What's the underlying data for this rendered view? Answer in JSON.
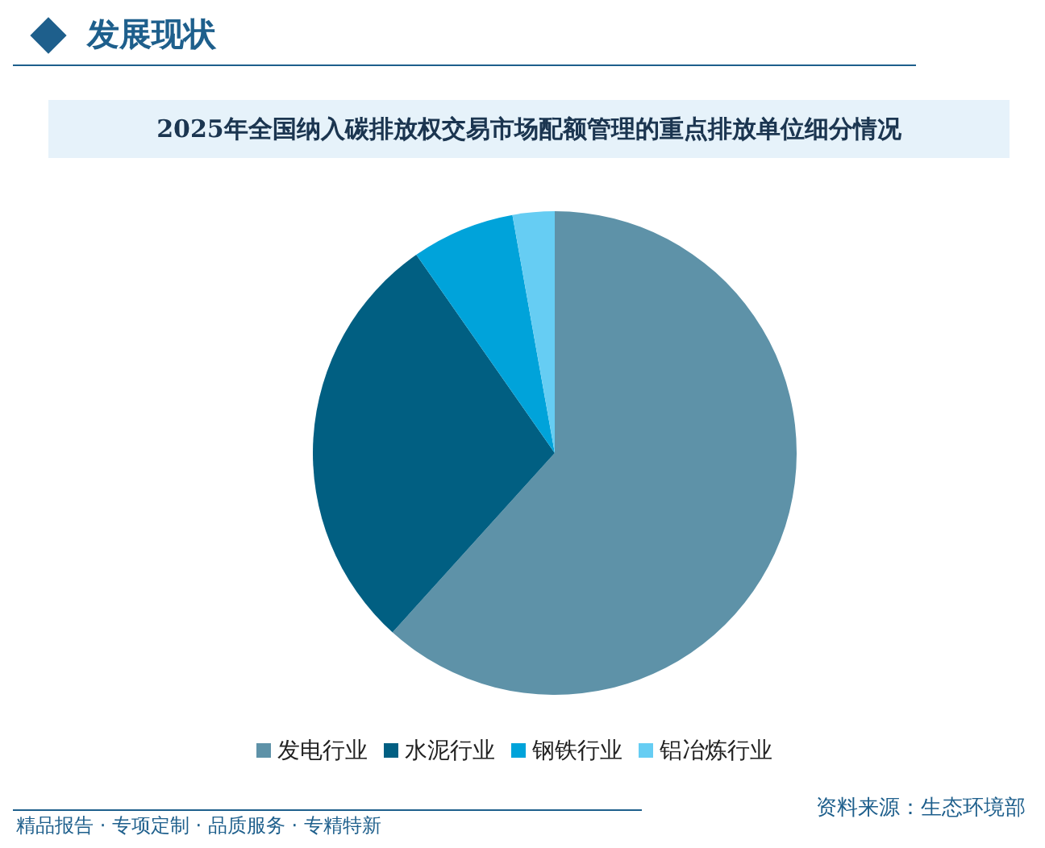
{
  "chart_data": {
    "type": "pie",
    "title": "2025年全国纳入碳排放权交易市场配额管理的重点排放单位细分情况",
    "categories": [
      "发电行业",
      "水泥行业",
      "钢铁行业",
      "铝冶炼行业"
    ],
    "values": [
      61.7,
      28.6,
      6.9,
      2.8
    ],
    "colors": [
      "#5e92a8",
      "#015f82",
      "#00a3da",
      "#66cdf3"
    ],
    "legend": "bottom",
    "annotations": [
      "发展现状",
      "资料来源：生态环境部",
      "精品报告 · 专项定制 · 品质服务 · 专精特新"
    ]
  }
}
